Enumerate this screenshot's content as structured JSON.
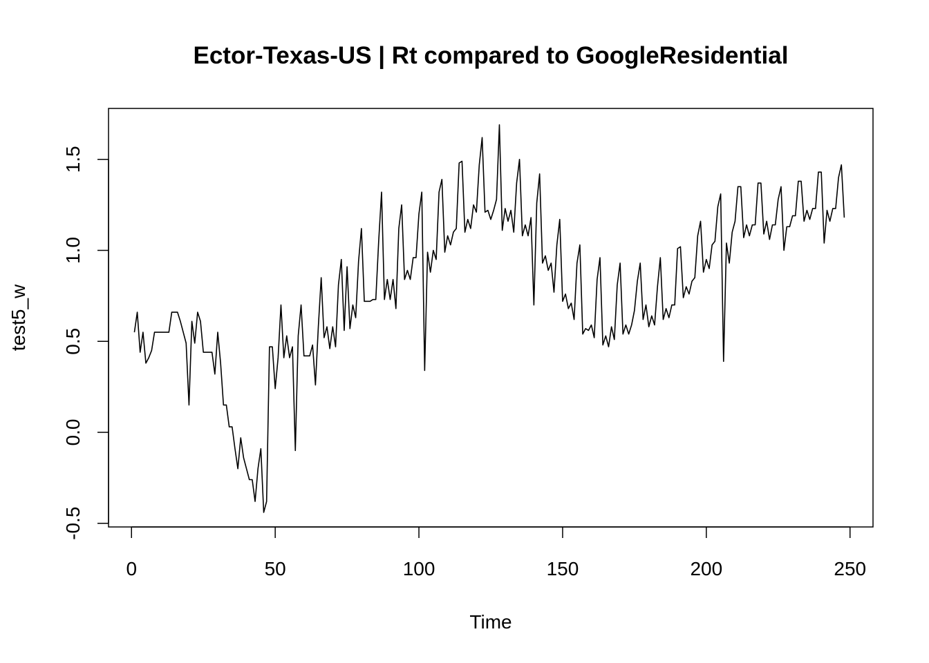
{
  "chart_data": {
    "type": "line",
    "title": "Ector-Texas-US | Rt compared to GoogleResidential",
    "xlabel": "Time",
    "ylabel": "test5_w",
    "xlim": [
      -8,
      258
    ],
    "ylim": [
      -0.52,
      1.78
    ],
    "x_ticks": [
      0,
      50,
      100,
      150,
      200,
      250
    ],
    "y_ticks": [
      -0.5,
      0.0,
      0.5,
      1.0,
      1.5
    ],
    "x_tick_labels": [
      "0",
      "50",
      "100",
      "150",
      "200",
      "250"
    ],
    "y_tick_labels": [
      "-0.5",
      "0.0",
      "0.5",
      "1.0",
      "1.5"
    ],
    "grid": false,
    "legend": "none",
    "line_color": "#000000",
    "series": [
      {
        "x_start": 1,
        "values": [
          0.55,
          0.66,
          0.44,
          0.55,
          0.38,
          0.41,
          0.45,
          0.55,
          0.55,
          0.55,
          0.55,
          0.55,
          0.55,
          0.66,
          0.66,
          0.66,
          0.61,
          0.55,
          0.49,
          0.15,
          0.61,
          0.49,
          0.66,
          0.61,
          0.44,
          0.44,
          0.44,
          0.44,
          0.32,
          0.55,
          0.38,
          0.15,
          0.15,
          0.03,
          0.03,
          -0.09,
          -0.2,
          -0.03,
          -0.14,
          -0.2,
          -0.26,
          -0.26,
          -0.38,
          -0.2,
          -0.09,
          -0.44,
          -0.38,
          0.47,
          0.47,
          0.24,
          0.41,
          0.7,
          0.41,
          0.53,
          0.41,
          0.47,
          -0.1,
          0.53,
          0.7,
          0.42,
          0.42,
          0.42,
          0.48,
          0.26,
          0.58,
          0.85,
          0.52,
          0.58,
          0.46,
          0.58,
          0.47,
          0.81,
          0.95,
          0.56,
          0.91,
          0.57,
          0.7,
          0.63,
          0.94,
          1.12,
          0.72,
          0.72,
          0.72,
          0.73,
          0.73,
          1.05,
          1.32,
          0.73,
          0.84,
          0.73,
          0.84,
          0.68,
          1.12,
          1.25,
          0.84,
          0.89,
          0.84,
          0.96,
          0.96,
          1.2,
          1.32,
          0.34,
          0.99,
          0.88,
          1.0,
          0.95,
          1.32,
          1.39,
          0.99,
          1.08,
          1.03,
          1.1,
          1.12,
          1.48,
          1.49,
          1.1,
          1.17,
          1.12,
          1.25,
          1.21,
          1.47,
          1.62,
          1.21,
          1.22,
          1.17,
          1.22,
          1.28,
          1.69,
          1.11,
          1.23,
          1.16,
          1.22,
          1.1,
          1.37,
          1.5,
          1.08,
          1.14,
          1.08,
          1.18,
          0.7,
          1.26,
          1.42,
          0.93,
          0.97,
          0.89,
          0.93,
          0.77,
          1.03,
          1.17,
          0.72,
          0.76,
          0.68,
          0.71,
          0.62,
          0.93,
          1.03,
          0.54,
          0.57,
          0.56,
          0.59,
          0.52,
          0.84,
          0.96,
          0.48,
          0.53,
          0.47,
          0.58,
          0.51,
          0.81,
          0.93,
          0.54,
          0.59,
          0.54,
          0.59,
          0.67,
          0.83,
          0.93,
          0.62,
          0.7,
          0.58,
          0.64,
          0.59,
          0.8,
          0.96,
          0.62,
          0.68,
          0.63,
          0.7,
          0.7,
          1.01,
          1.02,
          0.74,
          0.8,
          0.76,
          0.83,
          0.85,
          1.08,
          1.16,
          0.88,
          0.95,
          0.9,
          1.03,
          1.05,
          1.24,
          1.31,
          0.39,
          1.04,
          0.93,
          1.1,
          1.16,
          1.35,
          1.35,
          1.07,
          1.14,
          1.08,
          1.14,
          1.14,
          1.37,
          1.37,
          1.09,
          1.16,
          1.06,
          1.14,
          1.14,
          1.28,
          1.35,
          1.0,
          1.13,
          1.13,
          1.19,
          1.19,
          1.38,
          1.38,
          1.16,
          1.22,
          1.17,
          1.23,
          1.23,
          1.43,
          1.43,
          1.04,
          1.22,
          1.16,
          1.23,
          1.23,
          1.4,
          1.47,
          1.18
        ]
      }
    ]
  }
}
